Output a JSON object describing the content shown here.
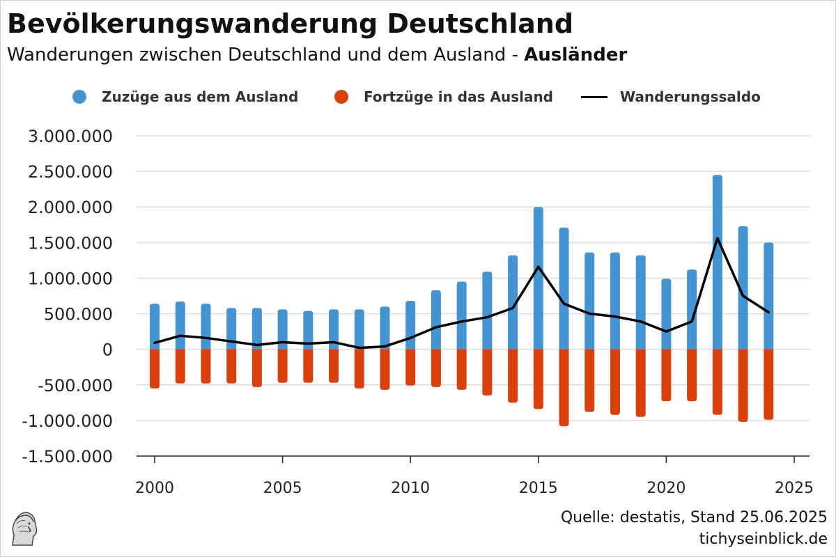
{
  "header": {
    "title": "Bevölkerungswanderung Deutschland",
    "subtitle_main": "Wanderungen zwischen Deutschland und dem Ausland - ",
    "subtitle_bold": "Ausländer"
  },
  "footer": {
    "source": "Quelle: destatis, Stand 25.06.2025",
    "site": "tichyseinblick.de"
  },
  "colors": {
    "zuzuege": "#4394d0",
    "fortzuege": "#d9400c",
    "saldo": "#000000",
    "grid": "#dcdcdc"
  },
  "chart_data": {
    "type": "bar",
    "x": [
      2000,
      2001,
      2002,
      2003,
      2004,
      2005,
      2006,
      2007,
      2008,
      2009,
      2010,
      2011,
      2012,
      2013,
      2014,
      2015,
      2016,
      2017,
      2018,
      2019,
      2020,
      2021,
      2022,
      2023,
      2024
    ],
    "series": [
      {
        "name": "Zuzüge aus dem Ausland",
        "type": "bar",
        "values": [
          640000,
          670000,
          640000,
          580000,
          580000,
          560000,
          540000,
          560000,
          560000,
          600000,
          680000,
          830000,
          950000,
          1090000,
          1320000,
          2000000,
          1710000,
          1360000,
          1360000,
          1320000,
          990000,
          1120000,
          2450000,
          1730000,
          1500000
        ]
      },
      {
        "name": "Fortzüge in das Ausland",
        "type": "bar",
        "values": [
          -550000,
          -480000,
          -480000,
          -480000,
          -530000,
          -470000,
          -470000,
          -470000,
          -550000,
          -570000,
          -510000,
          -530000,
          -570000,
          -650000,
          -750000,
          -840000,
          -1080000,
          -880000,
          -920000,
          -950000,
          -730000,
          -730000,
          -920000,
          -1020000,
          -990000
        ]
      },
      {
        "name": "Wanderungssaldo",
        "type": "line",
        "values": [
          90000,
          190000,
          160000,
          110000,
          60000,
          100000,
          80000,
          100000,
          20000,
          40000,
          160000,
          310000,
          390000,
          450000,
          580000,
          1160000,
          640000,
          500000,
          460000,
          390000,
          250000,
          390000,
          1560000,
          750000,
          520000
        ]
      }
    ],
    "xticks": [
      "2000",
      "2005",
      "2010",
      "2015",
      "2020",
      "2025"
    ],
    "yticks": [
      "3.000.000",
      "2.500.000",
      "2.000.000",
      "1.500.000",
      "1.000.000",
      "500.000",
      "0",
      "-500.000",
      "-1.000.000",
      "-1.500.000"
    ],
    "ylim": [
      -1500000,
      3000000
    ],
    "xlim": [
      2000,
      2025
    ],
    "grid": "horizontal",
    "legend_position": "top"
  }
}
